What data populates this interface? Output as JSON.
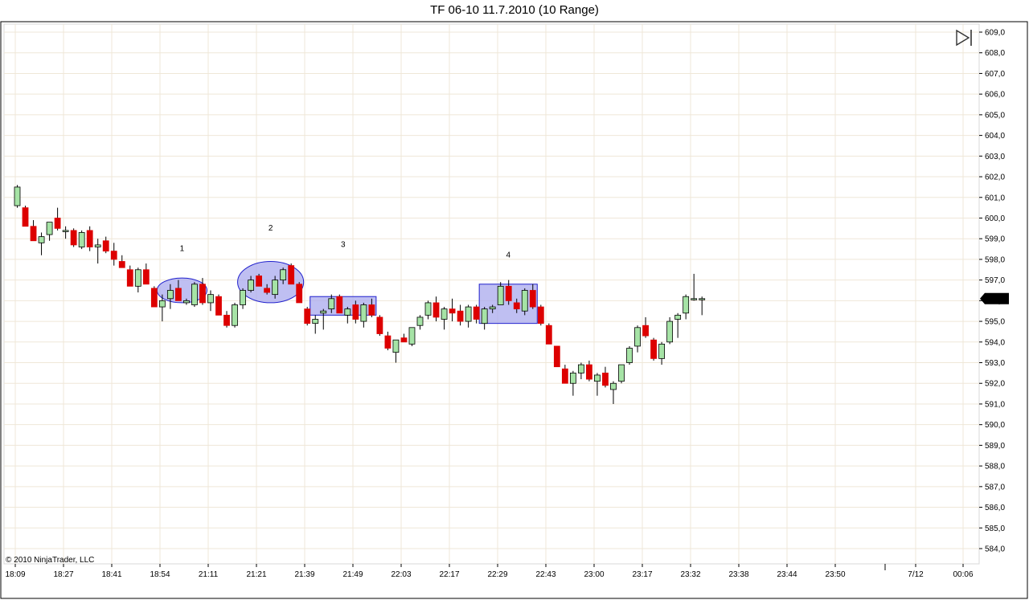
{
  "window": {
    "title": "TF 06-10  11.7.2010 (10 Range)"
  },
  "copyright": "© 2010 NinjaTrader, LLC",
  "last_price_label": "596,1",
  "icons": {
    "play_end": "play-to-end-icon"
  },
  "chart_data": {
    "type": "candlestick",
    "title": "TF 06-10  11.7.2010 (10 Range)",
    "ylim": [
      583.5,
      609.3
    ],
    "y_ticks": [
      "609,0",
      "608,0",
      "607,0",
      "606,0",
      "605,0",
      "604,0",
      "603,0",
      "602,0",
      "601,0",
      "600,0",
      "599,0",
      "598,0",
      "597,0",
      "596,0",
      "595,0",
      "594,0",
      "593,0",
      "592,0",
      "591,0",
      "590,0",
      "589,0",
      "588,0",
      "587,0",
      "586,0",
      "585,0",
      "584,0"
    ],
    "x_ticks": [
      "18:09",
      "18:27",
      "18:41",
      "18:54",
      "21:11",
      "21:21",
      "21:39",
      "21:49",
      "22:03",
      "22:17",
      "22:29",
      "22:43",
      "23:00",
      "23:17",
      "23:32",
      "23:38",
      "23:44",
      "23:50",
      "7/12",
      "00:06"
    ],
    "up_color": "#a6e3a6",
    "down_color": "#dd0000",
    "candles": [
      {
        "o": 600.6,
        "h": 601.6,
        "l": 600.5,
        "c": 601.5
      },
      {
        "o": 600.5,
        "h": 600.6,
        "l": 599.6,
        "c": 599.6
      },
      {
        "o": 599.6,
        "h": 599.9,
        "l": 598.9,
        "c": 598.9
      },
      {
        "o": 598.8,
        "h": 599.3,
        "l": 598.2,
        "c": 599.1
      },
      {
        "o": 599.2,
        "h": 599.8,
        "l": 598.9,
        "c": 599.8
      },
      {
        "o": 600.0,
        "h": 600.5,
        "l": 599.4,
        "c": 599.5
      },
      {
        "o": 599.4,
        "h": 599.6,
        "l": 599.0,
        "c": 599.4
      },
      {
        "o": 599.4,
        "h": 599.5,
        "l": 598.6,
        "c": 598.7
      },
      {
        "o": 598.6,
        "h": 599.4,
        "l": 598.5,
        "c": 599.3
      },
      {
        "o": 599.4,
        "h": 599.6,
        "l": 598.4,
        "c": 598.6
      },
      {
        "o": 598.6,
        "h": 599.0,
        "l": 597.8,
        "c": 598.7
      },
      {
        "o": 598.9,
        "h": 599.1,
        "l": 598.3,
        "c": 598.4
      },
      {
        "o": 598.4,
        "h": 598.8,
        "l": 597.7,
        "c": 598.0
      },
      {
        "o": 597.9,
        "h": 598.2,
        "l": 597.6,
        "c": 597.6
      },
      {
        "o": 597.5,
        "h": 597.7,
        "l": 596.7,
        "c": 596.7
      },
      {
        "o": 596.7,
        "h": 597.6,
        "l": 596.4,
        "c": 597.5
      },
      {
        "o": 597.5,
        "h": 597.8,
        "l": 596.8,
        "c": 596.8
      },
      {
        "o": 596.6,
        "h": 596.7,
        "l": 595.7,
        "c": 595.7
      },
      {
        "o": 595.7,
        "h": 596.3,
        "l": 595.0,
        "c": 596.0
      },
      {
        "o": 596.1,
        "h": 596.8,
        "l": 595.6,
        "c": 596.5
      },
      {
        "o": 596.6,
        "h": 597.0,
        "l": 596.0,
        "c": 596.0
      },
      {
        "o": 595.9,
        "h": 596.1,
        "l": 595.8,
        "c": 596.0
      },
      {
        "o": 595.8,
        "h": 596.9,
        "l": 595.7,
        "c": 596.8
      },
      {
        "o": 596.8,
        "h": 597.1,
        "l": 595.8,
        "c": 595.9
      },
      {
        "o": 595.9,
        "h": 596.5,
        "l": 595.5,
        "c": 596.3
      },
      {
        "o": 596.2,
        "h": 596.3,
        "l": 595.3,
        "c": 595.3
      },
      {
        "o": 595.3,
        "h": 595.5,
        "l": 594.7,
        "c": 594.8
      },
      {
        "o": 594.8,
        "h": 595.9,
        "l": 594.7,
        "c": 595.8
      },
      {
        "o": 595.8,
        "h": 596.6,
        "l": 595.6,
        "c": 596.5
      },
      {
        "o": 596.5,
        "h": 597.2,
        "l": 596.4,
        "c": 597.0
      },
      {
        "o": 597.2,
        "h": 597.3,
        "l": 596.8,
        "c": 596.7
      },
      {
        "o": 596.6,
        "h": 596.8,
        "l": 596.3,
        "c": 596.4
      },
      {
        "o": 596.3,
        "h": 597.2,
        "l": 596.1,
        "c": 597.0
      },
      {
        "o": 597.0,
        "h": 597.6,
        "l": 596.8,
        "c": 597.5
      },
      {
        "o": 597.7,
        "h": 597.8,
        "l": 596.8,
        "c": 596.8
      },
      {
        "o": 596.8,
        "h": 596.9,
        "l": 595.9,
        "c": 595.9
      },
      {
        "o": 595.6,
        "h": 595.7,
        "l": 594.8,
        "c": 594.9
      },
      {
        "o": 594.9,
        "h": 595.3,
        "l": 594.4,
        "c": 595.1
      },
      {
        "o": 595.4,
        "h": 595.6,
        "l": 594.6,
        "c": 595.5
      },
      {
        "o": 595.6,
        "h": 596.3,
        "l": 595.4,
        "c": 596.1
      },
      {
        "o": 596.2,
        "h": 596.3,
        "l": 595.4,
        "c": 595.4
      },
      {
        "o": 595.3,
        "h": 595.7,
        "l": 594.9,
        "c": 595.6
      },
      {
        "o": 595.8,
        "h": 596.0,
        "l": 594.9,
        "c": 595.1
      },
      {
        "o": 595.0,
        "h": 595.9,
        "l": 594.7,
        "c": 595.8
      },
      {
        "o": 595.8,
        "h": 596.1,
        "l": 595.2,
        "c": 595.3
      },
      {
        "o": 595.2,
        "h": 595.3,
        "l": 594.3,
        "c": 594.4
      },
      {
        "o": 594.3,
        "h": 594.5,
        "l": 593.6,
        "c": 593.7
      },
      {
        "o": 593.5,
        "h": 594.1,
        "l": 593.0,
        "c": 594.1
      },
      {
        "o": 594.2,
        "h": 594.4,
        "l": 594.0,
        "c": 594.0
      },
      {
        "o": 593.9,
        "h": 594.7,
        "l": 593.8,
        "c": 594.7
      },
      {
        "o": 594.8,
        "h": 595.3,
        "l": 594.6,
        "c": 595.2
      },
      {
        "o": 595.3,
        "h": 596.0,
        "l": 595.1,
        "c": 595.9
      },
      {
        "o": 595.9,
        "h": 596.2,
        "l": 595.0,
        "c": 595.2
      },
      {
        "o": 595.1,
        "h": 595.7,
        "l": 594.6,
        "c": 595.6
      },
      {
        "o": 595.6,
        "h": 596.1,
        "l": 595.0,
        "c": 595.4
      },
      {
        "o": 595.5,
        "h": 595.8,
        "l": 594.8,
        "c": 595.0
      },
      {
        "o": 595.0,
        "h": 595.8,
        "l": 594.7,
        "c": 595.7
      },
      {
        "o": 595.7,
        "h": 595.8,
        "l": 594.9,
        "c": 595.1
      },
      {
        "o": 594.9,
        "h": 595.7,
        "l": 594.6,
        "c": 595.6
      },
      {
        "o": 595.6,
        "h": 595.8,
        "l": 595.4,
        "c": 595.7
      },
      {
        "o": 595.8,
        "h": 596.9,
        "l": 595.8,
        "c": 596.7
      },
      {
        "o": 596.7,
        "h": 597.0,
        "l": 595.8,
        "c": 596.0
      },
      {
        "o": 595.9,
        "h": 596.1,
        "l": 595.4,
        "c": 595.6
      },
      {
        "o": 595.5,
        "h": 596.6,
        "l": 595.3,
        "c": 596.5
      },
      {
        "o": 596.5,
        "h": 596.8,
        "l": 595.6,
        "c": 595.7
      },
      {
        "o": 595.7,
        "h": 595.8,
        "l": 594.8,
        "c": 594.9
      },
      {
        "o": 594.8,
        "h": 594.9,
        "l": 593.9,
        "c": 593.9
      },
      {
        "o": 593.8,
        "h": 593.8,
        "l": 592.8,
        "c": 592.8
      },
      {
        "o": 592.7,
        "h": 592.9,
        "l": 592.0,
        "c": 592.0
      },
      {
        "o": 592.0,
        "h": 592.6,
        "l": 591.4,
        "c": 592.5
      },
      {
        "o": 592.5,
        "h": 593.0,
        "l": 592.2,
        "c": 592.9
      },
      {
        "o": 592.9,
        "h": 593.1,
        "l": 592.1,
        "c": 592.2
      },
      {
        "o": 592.1,
        "h": 592.5,
        "l": 591.4,
        "c": 592.4
      },
      {
        "o": 592.5,
        "h": 592.8,
        "l": 591.8,
        "c": 591.9
      },
      {
        "o": 591.7,
        "h": 592.1,
        "l": 591.0,
        "c": 592.0
      },
      {
        "o": 592.1,
        "h": 592.9,
        "l": 592.0,
        "c": 592.9
      },
      {
        "o": 593.0,
        "h": 593.8,
        "l": 592.9,
        "c": 593.7
      },
      {
        "o": 593.8,
        "h": 594.8,
        "l": 593.5,
        "c": 594.7
      },
      {
        "o": 594.8,
        "h": 595.2,
        "l": 594.2,
        "c": 594.3
      },
      {
        "o": 594.1,
        "h": 594.2,
        "l": 593.1,
        "c": 593.2
      },
      {
        "o": 593.2,
        "h": 594.0,
        "l": 592.9,
        "c": 593.9
      },
      {
        "o": 594.0,
        "h": 595.2,
        "l": 593.9,
        "c": 595.0
      },
      {
        "o": 595.1,
        "h": 595.4,
        "l": 594.2,
        "c": 595.3
      },
      {
        "o": 595.4,
        "h": 596.3,
        "l": 595.1,
        "c": 596.2
      },
      {
        "o": 596.1,
        "h": 597.3,
        "l": 596.0,
        "c": 596.1
      },
      {
        "o": 596.1,
        "h": 596.2,
        "l": 595.3,
        "c": 596.1
      }
    ],
    "annotations": [
      {
        "label": "1",
        "shape": "ellipse",
        "from": 18,
        "to": 23,
        "low": 595.9,
        "high": 597.1,
        "label_price": 598.4
      },
      {
        "label": "2",
        "shape": "ellipse",
        "from": 28,
        "to": 35,
        "low": 595.9,
        "high": 597.9,
        "label_price": 599.4
      },
      {
        "label": "3",
        "shape": "rect",
        "from": 37,
        "to": 44,
        "low": 595.3,
        "high": 596.2,
        "label_price": 598.6
      },
      {
        "label": "4",
        "shape": "rect",
        "from": 58,
        "to": 64,
        "low": 594.9,
        "high": 596.8,
        "label_price": 598.1
      }
    ]
  }
}
